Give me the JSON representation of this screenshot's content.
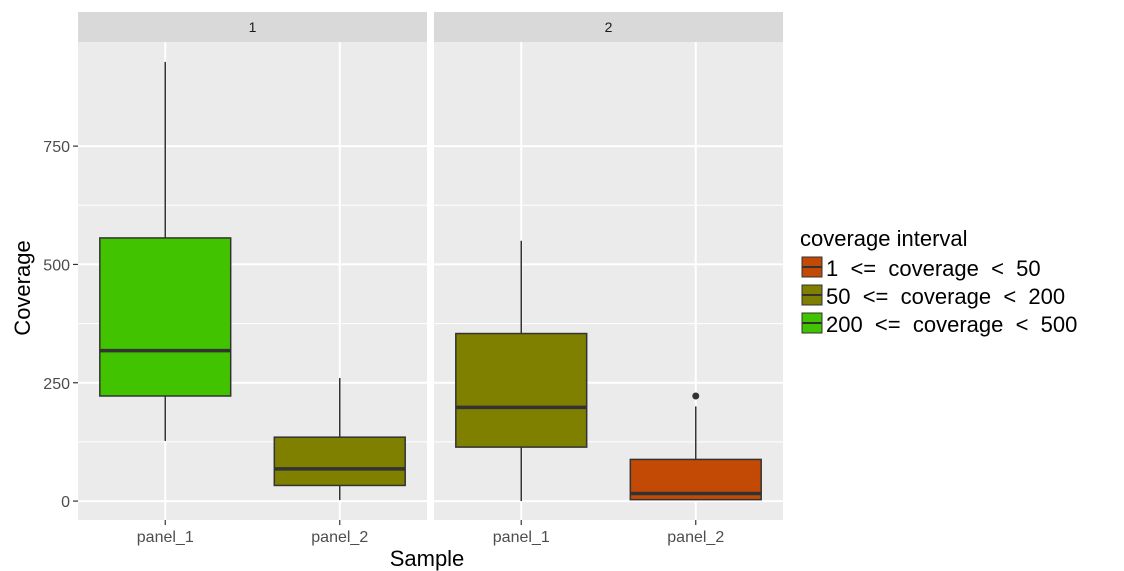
{
  "chart_data": {
    "type": "boxplot",
    "xlabel": "Sample",
    "ylabel": "Coverage",
    "ylim": [
      -40,
      970
    ],
    "y_ticks": [
      0,
      250,
      500,
      750
    ],
    "y_tick_labels": [
      "0",
      "250",
      "500",
      "750"
    ],
    "grid": true,
    "legend_position": "right",
    "legend": {
      "title": "coverage interval",
      "items": [
        {
          "label": "1  <=  coverage  <  50",
          "color": "#C24A04"
        },
        {
          "label": "50  <=  coverage  <  200",
          "color": "#7F7F00"
        },
        {
          "label": "200  <=  coverage  <  500",
          "color": "#41C300"
        }
      ]
    },
    "panels": [
      {
        "title": "1",
        "boxes": [
          {
            "category": "panel_1",
            "interval": "200  <=  coverage  <  500",
            "color": "#41C300",
            "min": 127,
            "q1": 222,
            "median": 318,
            "q3": 556,
            "max": 928,
            "outliers": []
          },
          {
            "category": "panel_2",
            "interval": "50  <=  coverage  <  200",
            "color": "#7F7F00",
            "min": 2,
            "q1": 33,
            "median": 68,
            "q3": 135,
            "max": 260,
            "outliers": []
          }
        ]
      },
      {
        "title": "2",
        "boxes": [
          {
            "category": "panel_1",
            "interval": "50  <=  coverage  <  200",
            "color": "#7F7F00",
            "min": 0,
            "q1": 114,
            "median": 198,
            "q3": 354,
            "max": 550,
            "outliers": []
          },
          {
            "category": "panel_2",
            "interval": "1  <=  coverage  <  50",
            "color": "#C24A04",
            "min": 2,
            "q1": 3,
            "median": 16,
            "q3": 88,
            "max": 200,
            "outliers": [
              222
            ]
          }
        ]
      }
    ],
    "categories": [
      "panel_1",
      "panel_2"
    ]
  }
}
